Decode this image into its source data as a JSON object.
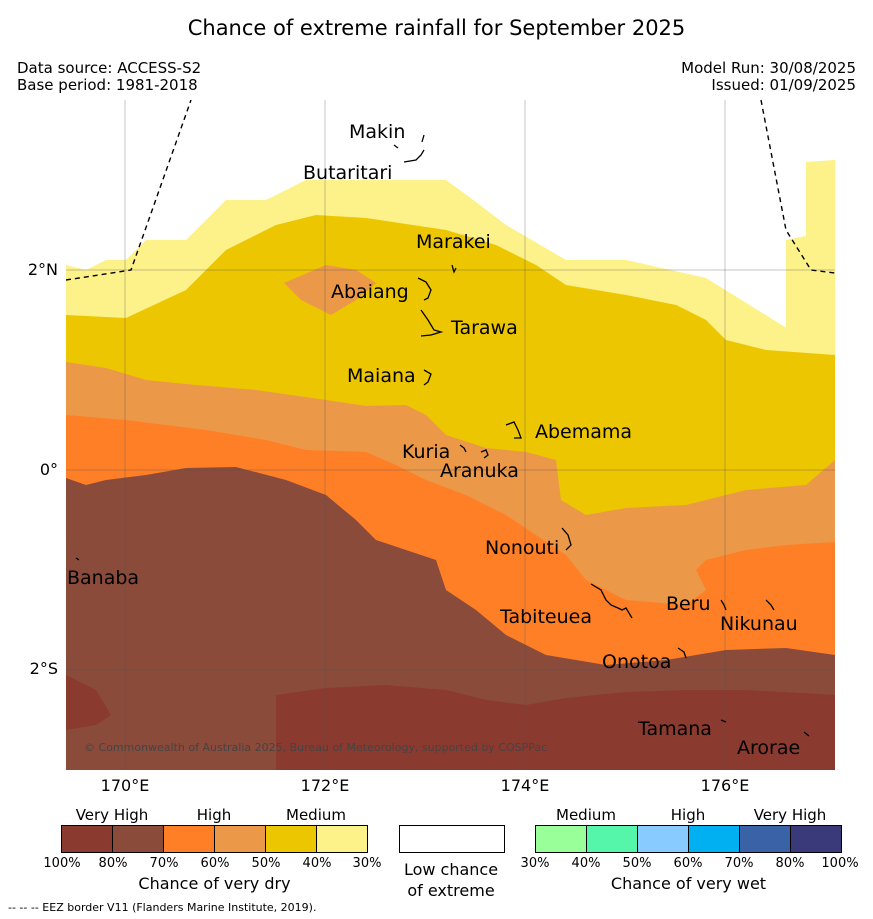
{
  "title": "Chance of extreme rainfall for September 2025",
  "meta": {
    "data_source": "Data source: ACCESS-S2",
    "base_period": "Base period: 1981-2018",
    "model_run": "Model Run: 30/08/2025",
    "issued": "Issued: 01/09/2025"
  },
  "axes": {
    "lat_ticks": [
      "2°N",
      "0°",
      "2°S"
    ],
    "lon_ticks": [
      "170°E",
      "172°E",
      "174°E",
      "176°E"
    ]
  },
  "places": [
    "Makin",
    "Butaritari",
    "Marakei",
    "Abaiang",
    "Tarawa",
    "Maiana",
    "Abemama",
    "Kuria",
    "Aranuka",
    "Nonouti",
    "Banaba",
    "Tabiteuea",
    "Beru",
    "Nikunau",
    "Onotoa",
    "Tamana",
    "Arorae"
  ],
  "copyright": "© Commonwealth of Australia 2025, Bureau of Meteorology, supported by COSPPac",
  "legend_dry": {
    "categories": [
      "Very High",
      "High",
      "Medium"
    ],
    "colors": [
      "#8b3a30",
      "#8a4b3b",
      "#ff7f27",
      "#eb9848",
      "#ecc600",
      "#fdf18a"
    ],
    "percent_labels": [
      "100%",
      "80%",
      "70%",
      "60%",
      "50%",
      "40%",
      "30%"
    ],
    "title": "Chance of very dry"
  },
  "legend_low": {
    "line1": "Low chance",
    "line2": "of extreme",
    "color": "#ffffff"
  },
  "legend_wet": {
    "categories": [
      "Medium",
      "High",
      "Very High"
    ],
    "colors": [
      "#99ff99",
      "#55f5aa",
      "#88ccff",
      "#00b0f0",
      "#3a62a7",
      "#3a3a7a"
    ],
    "percent_labels": [
      "30%",
      "40%",
      "50%",
      "60%",
      "70%",
      "80%",
      "100%"
    ],
    "title": "Chance of very wet"
  },
  "footer": "--  --  -- EEZ border V11 (Flanders Marine Institute, 2019)."
}
